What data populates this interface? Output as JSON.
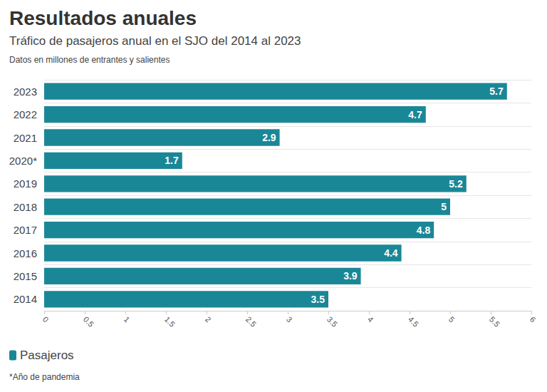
{
  "chart_data": {
    "type": "bar",
    "orientation": "horizontal",
    "title": "Resultados anuales",
    "subtitle": "Tráfico de pasajeros anual en el SJO del 2014 al 2023",
    "annotations": [
      "Datos en millones de entrantes y salientes",
      "*Año de pandemia"
    ],
    "categories": [
      "2014",
      "2015",
      "2016",
      "2017",
      "2018",
      "2019",
      "2020*",
      "2021",
      "2022",
      "2023"
    ],
    "series": [
      {
        "name": "Pasajeros",
        "color": "#1a8797",
        "values": [
          3.5,
          3.9,
          4.4,
          4.8,
          5,
          5.2,
          1.7,
          2.9,
          4.7,
          5.7
        ]
      }
    ],
    "xlim": [
      0,
      6
    ],
    "xticks": [
      0,
      0.5,
      1,
      1.5,
      2,
      2.5,
      3,
      3.5,
      4,
      4.5,
      5,
      5.5,
      6
    ],
    "grid": true,
    "legend": "lower left",
    "data_labels": true
  }
}
